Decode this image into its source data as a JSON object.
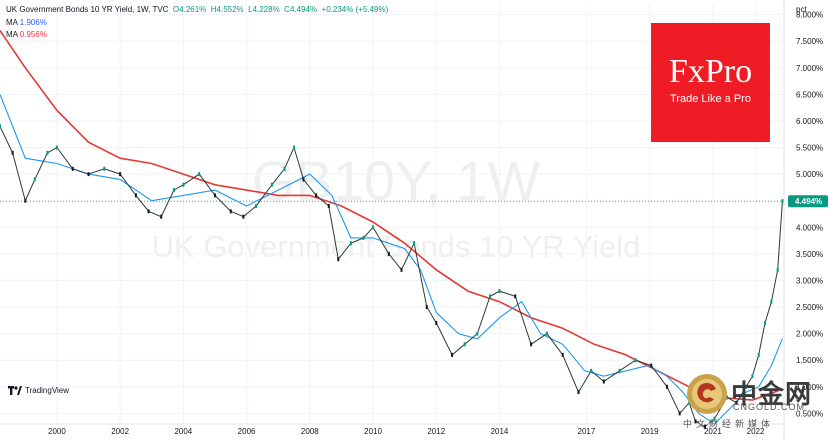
{
  "header": {
    "title": "UK Government Bonds 10 YR Yield, 1W, TVC",
    "o_label": "O",
    "o": "4.261%",
    "h_label": "H",
    "h": "4.552%",
    "l_label": "L",
    "l": "4.228%",
    "c_label": "C",
    "c": "4.494%",
    "change": "+0.234% (+5.49%)",
    "ma1_label": "MA",
    "ma1_value": "1.906%",
    "ma2_label": "MA",
    "ma2_value": "0.956%"
  },
  "watermark": {
    "symbol": "GB10Y, 1W",
    "name": "UK Government Bonds 10 YR Yield"
  },
  "logo": {
    "brand": "FxPro",
    "tagline": "Trade Like a Pro"
  },
  "tradingview": {
    "label": "TradingView"
  },
  "cngold": {
    "name": "中金网",
    "domain": "CNGOLD.COM",
    "subtitle": "中文财经新媒体"
  },
  "colors": {
    "up": "#089981",
    "down": "#131722",
    "ma_short": "#2196f3",
    "ma_long": "#e53935",
    "price_label": "#089981",
    "logo_bg": "#ef1c25"
  },
  "chart_data": {
    "type": "line",
    "unit_label": "pct",
    "price_label": "4.494%",
    "ylim": [
      0.3,
      8.2
    ],
    "y_ticks": [
      "8.000%",
      "7.500%",
      "7.000%",
      "6.500%",
      "6.000%",
      "5.500%",
      "5.000%",
      "4.500%",
      "4.000%",
      "3.500%",
      "3.000%",
      "2.500%",
      "2.000%",
      "1.500%",
      "1.000%",
      "0.500%"
    ],
    "y_tick_values": [
      8.0,
      7.5,
      7.0,
      6.5,
      6.0,
      5.5,
      5.0,
      4.5,
      4.0,
      3.5,
      3.0,
      2.5,
      2.0,
      1.5,
      1.0,
      0.5
    ],
    "xlim": [
      1998.2,
      2023.0
    ],
    "x_ticks": [
      "2000",
      "2002",
      "2004",
      "2006",
      "2008",
      "2010",
      "2012",
      "2014",
      "2017",
      "2019",
      "2021",
      "2022"
    ],
    "x_tick_values": [
      2000.0,
      2002.0,
      2004.0,
      2006.0,
      2008.0,
      2010.0,
      2012.0,
      2014.0,
      2016.75,
      2018.75,
      2020.75,
      2022.1
    ],
    "series": [
      {
        "name": "UK Government Bonds 10 YR Yield",
        "x": [
          1998.2,
          1998.6,
          1999.0,
          1999.3,
          1999.7,
          2000.0,
          2000.5,
          2001.0,
          2001.5,
          2002.0,
          2002.5,
          2002.9,
          2003.3,
          2003.7,
          2004.0,
          2004.5,
          2005.0,
          2005.5,
          2005.9,
          2006.3,
          2006.8,
          2007.2,
          2007.5,
          2007.8,
          2008.2,
          2008.6,
          2008.9,
          2009.3,
          2009.7,
          2010.0,
          2010.5,
          2010.9,
          2011.3,
          2011.7,
          2012.0,
          2012.5,
          2012.9,
          2013.3,
          2013.7,
          2014.0,
          2014.5,
          2015.0,
          2015.5,
          2016.0,
          2016.5,
          2016.9,
          2017.3,
          2017.8,
          2018.3,
          2018.8,
          2019.3,
          2019.7,
          2020.0,
          2020.2,
          2020.5,
          2020.8,
          2021.2,
          2021.5,
          2021.8,
          2022.0,
          2022.2,
          2022.4,
          2022.6,
          2022.8,
          2022.95
        ],
        "values": [
          5.9,
          5.4,
          4.5,
          4.9,
          5.4,
          5.5,
          5.1,
          5.0,
          5.1,
          5.0,
          4.6,
          4.3,
          4.2,
          4.7,
          4.8,
          5.0,
          4.6,
          4.3,
          4.2,
          4.4,
          4.8,
          5.1,
          5.5,
          4.9,
          4.6,
          4.4,
          3.4,
          3.7,
          3.8,
          4.0,
          3.5,
          3.2,
          3.7,
          2.5,
          2.2,
          1.6,
          1.8,
          2.0,
          2.7,
          2.8,
          2.7,
          1.8,
          2.0,
          1.6,
          0.9,
          1.3,
          1.1,
          1.3,
          1.5,
          1.4,
          1.0,
          0.5,
          0.7,
          0.35,
          0.25,
          0.4,
          0.8,
          0.7,
          1.0,
          1.2,
          1.6,
          2.2,
          2.6,
          3.2,
          4.49
        ]
      },
      {
        "name": "MA",
        "value_label": "1.906%",
        "x": [
          1998.2,
          1999.0,
          2000.0,
          2001.0,
          2002.0,
          2003.0,
          2004.0,
          2005.0,
          2006.0,
          2007.0,
          2008.0,
          2008.7,
          2009.3,
          2010.0,
          2011.0,
          2011.5,
          2012.0,
          2012.7,
          2013.3,
          2014.0,
          2014.7,
          2015.3,
          2016.0,
          2016.7,
          2017.3,
          2018.0,
          2018.7,
          2019.3,
          2019.8,
          2020.3,
          2020.8,
          2021.3,
          2021.8,
          2022.2,
          2022.6,
          2022.95
        ],
        "values": [
          6.5,
          5.3,
          5.2,
          5.0,
          4.9,
          4.5,
          4.6,
          4.7,
          4.4,
          4.7,
          5.0,
          4.6,
          3.8,
          3.8,
          3.6,
          3.2,
          2.4,
          2.0,
          1.9,
          2.3,
          2.6,
          2.0,
          1.8,
          1.3,
          1.2,
          1.3,
          1.4,
          1.2,
          0.9,
          0.5,
          0.3,
          0.6,
          0.9,
          1.0,
          1.4,
          1.906
        ]
      },
      {
        "name": "MA",
        "value_label": "0.956%",
        "x": [
          1998.2,
          1999.0,
          2000.0,
          2001.0,
          2002.0,
          2003.0,
          2004.0,
          2005.0,
          2006.0,
          2007.0,
          2008.0,
          2009.0,
          2010.0,
          2011.0,
          2012.0,
          2013.0,
          2014.0,
          2015.0,
          2016.0,
          2017.0,
          2018.0,
          2019.0,
          2020.0,
          2021.0,
          2022.0,
          2022.95
        ],
        "values": [
          7.7,
          7.0,
          6.2,
          5.6,
          5.3,
          5.2,
          5.0,
          4.8,
          4.7,
          4.6,
          4.6,
          4.4,
          4.1,
          3.7,
          3.2,
          2.8,
          2.6,
          2.3,
          2.1,
          1.8,
          1.6,
          1.3,
          1.0,
          0.8,
          0.75,
          0.956
        ]
      }
    ]
  }
}
